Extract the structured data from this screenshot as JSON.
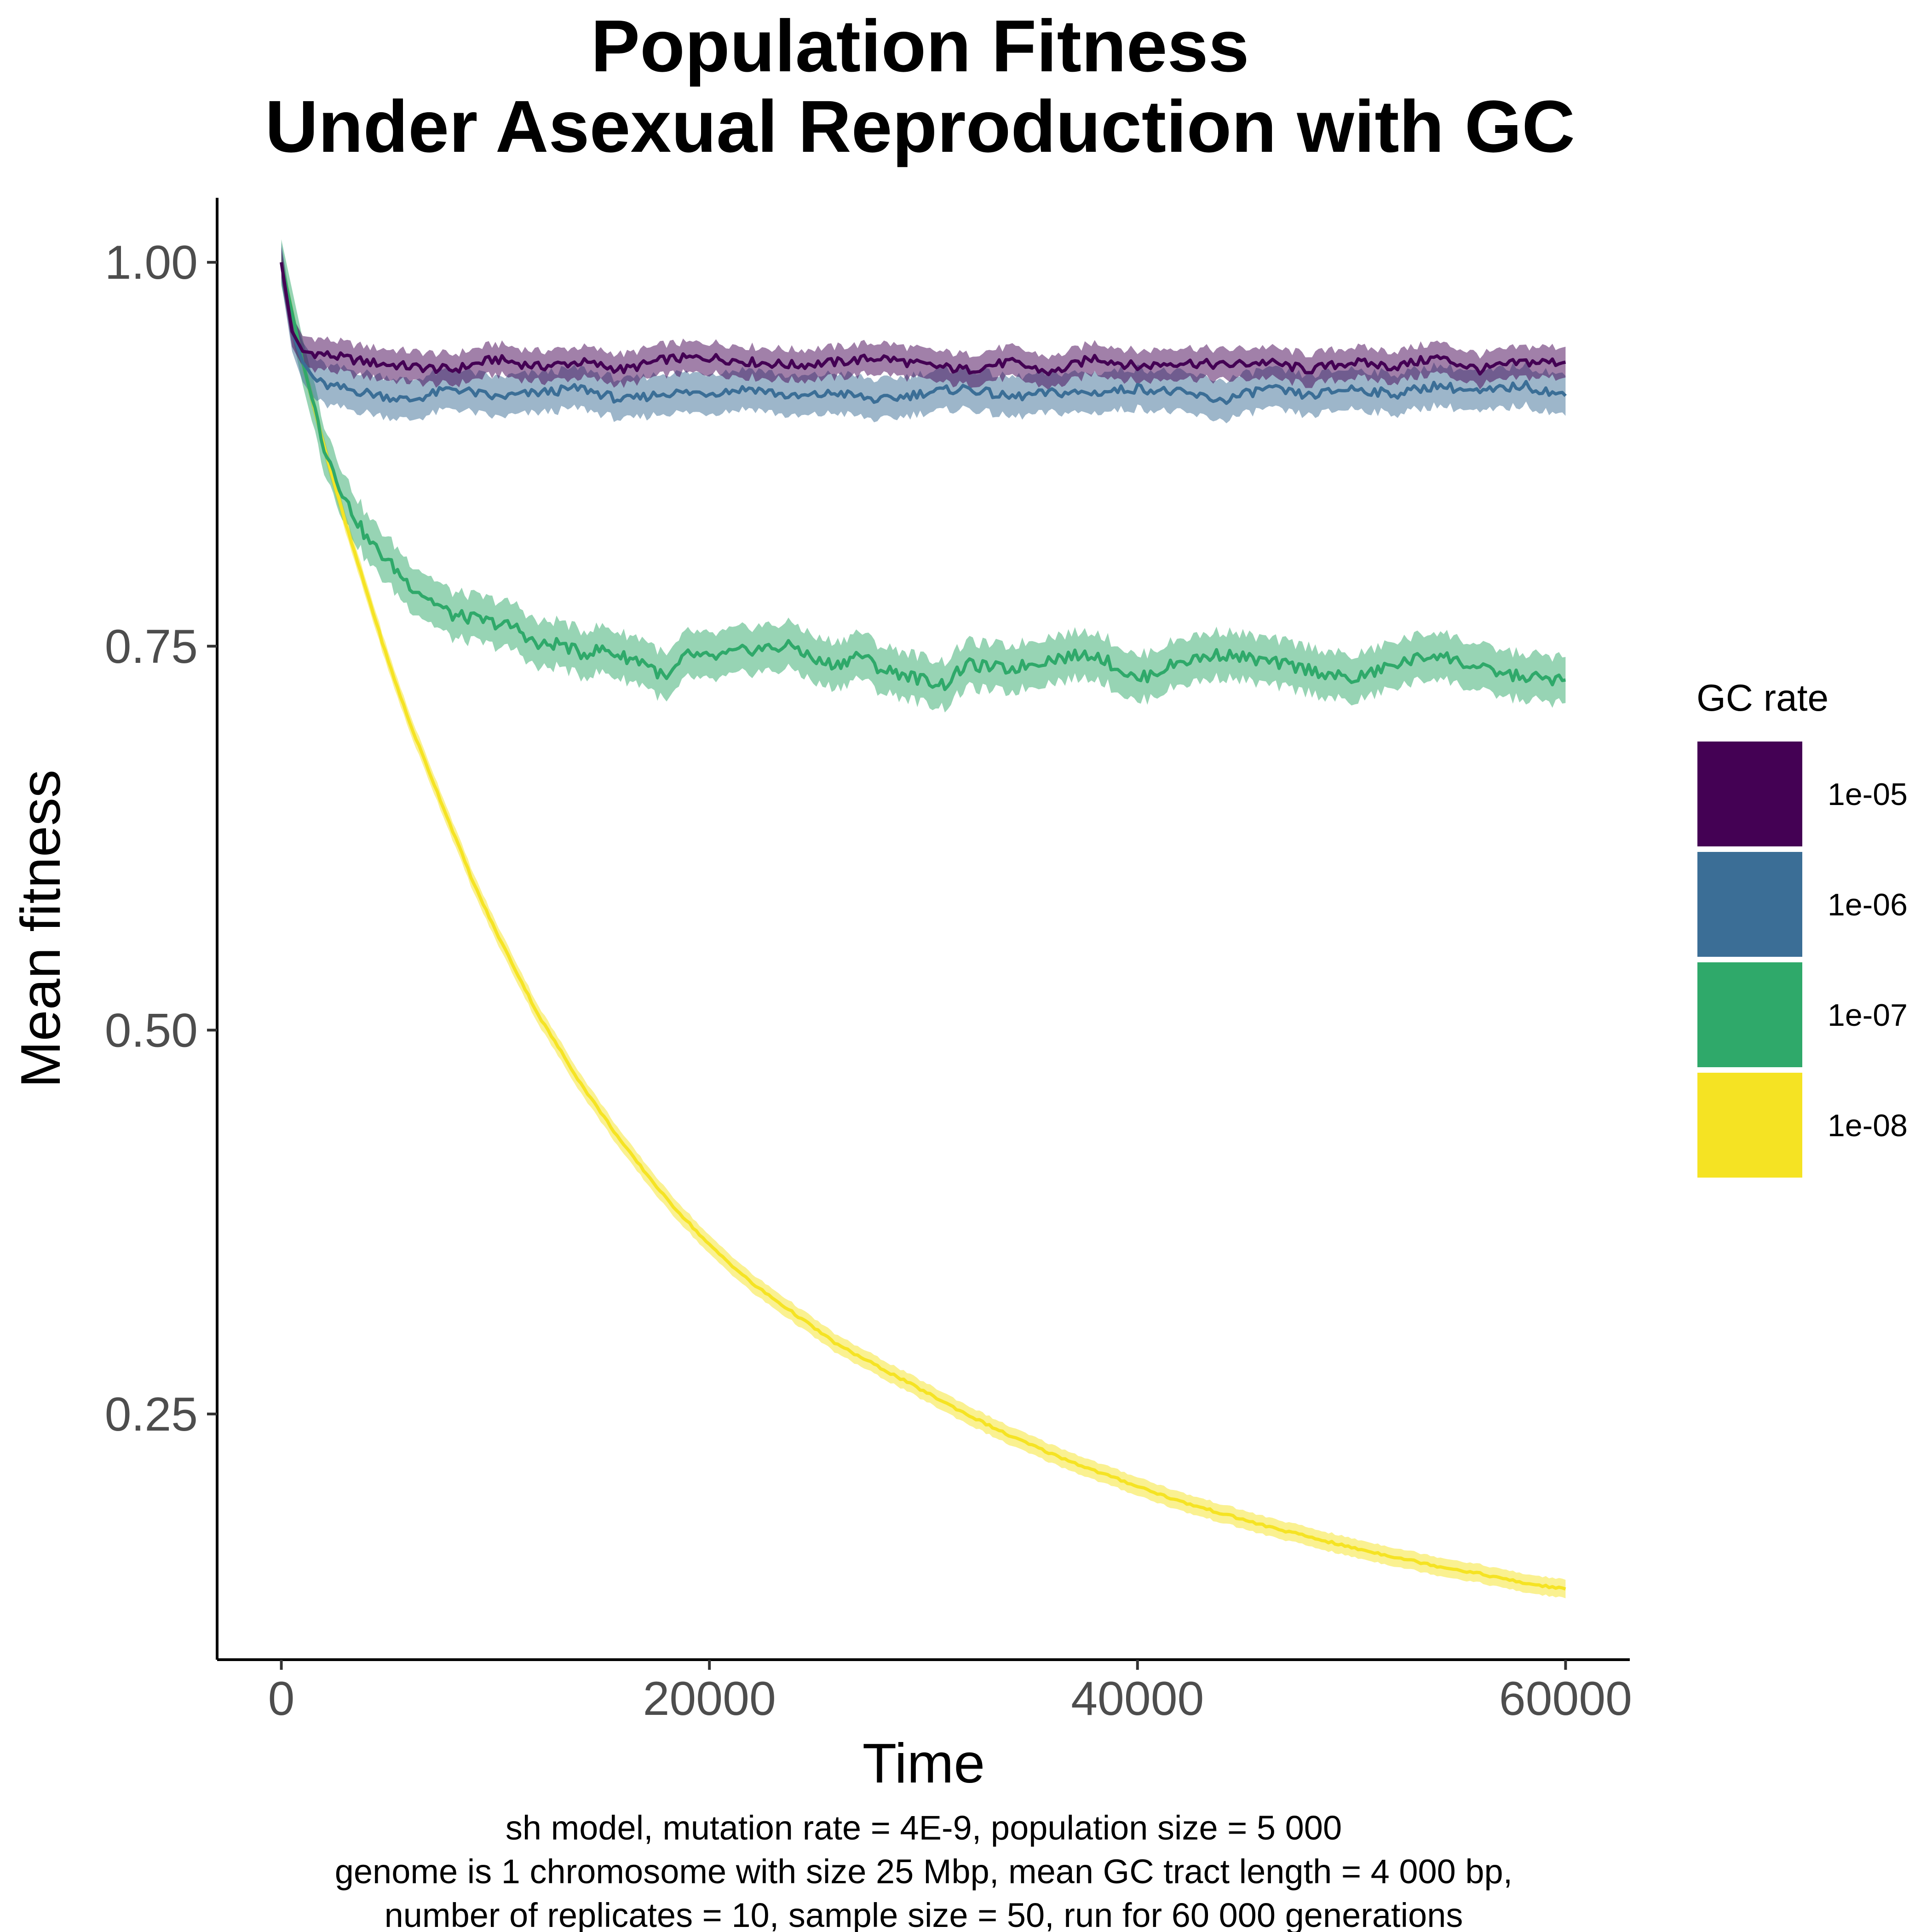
{
  "chart_data": {
    "type": "line",
    "title": [
      "Population Fitness",
      "Under Asexual Reproduction with GC"
    ],
    "xlabel": "Time",
    "ylabel": "Mean fitness",
    "xlim": [
      -3000,
      63000
    ],
    "ylim": [
      0.09,
      1.042
    ],
    "x_ticks": [
      0,
      20000,
      40000,
      60000
    ],
    "x_tick_labels": [
      "0",
      "20000",
      "40000",
      "60000"
    ],
    "y_ticks": [
      0.25,
      0.5,
      0.75,
      1.0
    ],
    "y_tick_labels": [
      "0.25",
      "0.50",
      "0.75",
      "1.00"
    ],
    "grid": false,
    "legend": {
      "title": "GC rate",
      "position": "right"
    },
    "series": [
      {
        "name": "1e-05",
        "color": "#440154",
        "ribbon_half_width": 0.01,
        "x": [
          0,
          500,
          1000,
          2000,
          4000,
          6000,
          8000,
          10000,
          12000,
          14000,
          16000,
          18000,
          20000,
          22000,
          24000,
          26000,
          28000,
          30000,
          32000,
          34000,
          36000,
          38000,
          40000,
          42000,
          44000,
          46000,
          48000,
          50000,
          52000,
          54000,
          56000,
          58000,
          60000
        ],
        "values": [
          1.0,
          0.955,
          0.942,
          0.94,
          0.935,
          0.932,
          0.93,
          0.937,
          0.932,
          0.935,
          0.93,
          0.937,
          0.938,
          0.935,
          0.933,
          0.935,
          0.938,
          0.933,
          0.93,
          0.935,
          0.928,
          0.938,
          0.932,
          0.935,
          0.933,
          0.935,
          0.93,
          0.935,
          0.932,
          0.938,
          0.93,
          0.935,
          0.935
        ]
      },
      {
        "name": "1e-06",
        "color": "#3b6e96",
        "ribbon_half_width": 0.013,
        "x": [
          0,
          500,
          1000,
          1500,
          2000,
          4000,
          6000,
          8000,
          10000,
          12000,
          14000,
          16000,
          18000,
          20000,
          22000,
          24000,
          26000,
          28000,
          30000,
          32000,
          34000,
          36000,
          38000,
          40000,
          42000,
          44000,
          46000,
          48000,
          50000,
          52000,
          54000,
          56000,
          58000,
          60000
        ],
        "values": [
          1.0,
          0.955,
          0.935,
          0.925,
          0.92,
          0.915,
          0.91,
          0.918,
          0.912,
          0.915,
          0.918,
          0.91,
          0.915,
          0.915,
          0.918,
          0.912,
          0.915,
          0.91,
          0.915,
          0.918,
          0.912,
          0.915,
          0.915,
          0.918,
          0.915,
          0.91,
          0.918,
          0.913,
          0.918,
          0.914,
          0.92,
          0.915,
          0.92,
          0.913
        ]
      },
      {
        "name": "1e-07",
        "color": "#2fa96a",
        "ribbon_half_width": 0.015,
        "x": [
          0,
          1000,
          2000,
          3000,
          4000,
          5000,
          6000,
          7000,
          8000,
          9000,
          10000,
          11000,
          12000,
          13000,
          14000,
          15000,
          16000,
          17000,
          18000,
          19000,
          20000,
          22000,
          24000,
          25000,
          26000,
          27000,
          28000,
          29000,
          30000,
          31000,
          32000,
          34000,
          36000,
          38000,
          40000,
          42000,
          44000,
          46000,
          48000,
          50000,
          52000,
          54000,
          56000,
          58000,
          60000
        ],
        "values": [
          1.0,
          0.935,
          0.88,
          0.845,
          0.82,
          0.805,
          0.79,
          0.78,
          0.77,
          0.768,
          0.765,
          0.762,
          0.75,
          0.752,
          0.745,
          0.748,
          0.743,
          0.74,
          0.728,
          0.745,
          0.742,
          0.748,
          0.75,
          0.74,
          0.738,
          0.745,
          0.735,
          0.732,
          0.728,
          0.725,
          0.738,
          0.735,
          0.742,
          0.745,
          0.728,
          0.74,
          0.745,
          0.74,
          0.735,
          0.728,
          0.738,
          0.745,
          0.735,
          0.73,
          0.728
        ]
      },
      {
        "name": "1e-08",
        "color": "#f5e323",
        "ribbon_half_width": 0.006,
        "x": [
          0,
          1000,
          2000,
          3000,
          4000,
          5000,
          6000,
          7000,
          8000,
          9000,
          10000,
          12000,
          14000,
          16000,
          18000,
          20000,
          22000,
          24000,
          26000,
          28000,
          30000,
          32000,
          34000,
          36000,
          38000,
          40000,
          42000,
          44000,
          46000,
          48000,
          50000,
          52000,
          54000,
          56000,
          58000,
          60000
        ],
        "values": [
          1.0,
          0.935,
          0.88,
          0.83,
          0.785,
          0.74,
          0.7,
          0.665,
          0.63,
          0.595,
          0.565,
          0.51,
          0.465,
          0.425,
          0.39,
          0.36,
          0.335,
          0.315,
          0.295,
          0.28,
          0.265,
          0.25,
          0.236,
          0.224,
          0.213,
          0.203,
          0.193,
          0.185,
          0.177,
          0.17,
          0.163,
          0.157,
          0.151,
          0.146,
          0.14,
          0.136
        ]
      }
    ]
  },
  "caption": [
    "sh model, mutation rate = 4E-9, population size = 5 000",
    "genome is 1 chromosome with size 25 Mbp, mean GC tract length = 4 000 bp,",
    "number of replicates = 10, sample size = 50, run for 60 000 generations"
  ]
}
